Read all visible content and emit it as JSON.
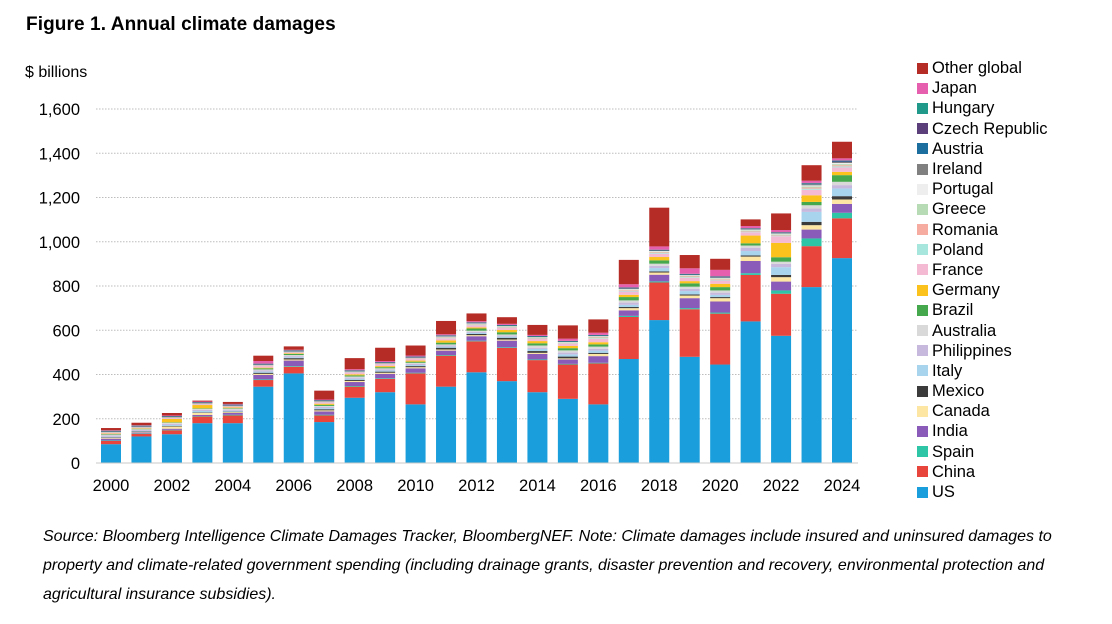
{
  "figure": {
    "title": "Figure 1. Annual climate damages",
    "unit_label": "$ billions",
    "source_note": "Source: Bloomberg Intelligence Climate Damages Tracker, BloombergNEF. Note: Climate damages include insured and uninsured damages to property and climate-related government spending (including drainage grants, disaster prevention and recovery, environmental protection and agricultural insurance subsidies)."
  },
  "chart_data": {
    "type": "bar",
    "stacked": true,
    "title": "Annual climate damages",
    "xlabel": "",
    "ylabel": "$ billions",
    "ylim": [
      0,
      1600
    ],
    "yticks": [
      0,
      200,
      400,
      600,
      800,
      1000,
      1200,
      1400,
      1600
    ],
    "ytick_labels": [
      "0",
      "200",
      "400",
      "600",
      "800",
      "1,000",
      "1,200",
      "1,400",
      "1,600"
    ],
    "grid": true,
    "legend_position": "right",
    "categories": [
      "2000",
      "2001",
      "2002",
      "2003",
      "2004",
      "2005",
      "2006",
      "2007",
      "2008",
      "2009",
      "2010",
      "2011",
      "2012",
      "2013",
      "2014",
      "2015",
      "2016",
      "2017",
      "2018",
      "2019",
      "2020",
      "2021",
      "2022",
      "2023",
      "2024"
    ],
    "xtick_labels": [
      "2000",
      "2002",
      "2004",
      "2006",
      "2008",
      "2010",
      "2012",
      "2014",
      "2016",
      "2018",
      "2020",
      "2022",
      "2024"
    ],
    "series": [
      {
        "name": "US",
        "color": "#1a9fdc",
        "values": [
          85,
          120,
          130,
          180,
          180,
          345,
          405,
          185,
          295,
          320,
          265,
          345,
          410,
          370,
          320,
          290,
          265,
          470,
          646,
          480,
          445,
          640,
          575,
          795,
          926
        ]
      },
      {
        "name": "China",
        "color": "#e8453c",
        "values": [
          15,
          12,
          18,
          30,
          35,
          30,
          30,
          30,
          50,
          60,
          140,
          140,
          140,
          150,
          145,
          155,
          185,
          190,
          170,
          215,
          230,
          210,
          190,
          185,
          180
        ]
      },
      {
        "name": "Spain",
        "color": "#2ec4a6",
        "values": [
          2,
          2,
          2,
          2,
          3,
          3,
          3,
          3,
          3,
          3,
          3,
          3,
          3,
          3,
          3,
          3,
          3,
          5,
          5,
          5,
          5,
          8,
          15,
          35,
          25
        ]
      },
      {
        "name": "India",
        "color": "#8a5bb8",
        "values": [
          8,
          4,
          5,
          5,
          8,
          20,
          25,
          15,
          18,
          20,
          20,
          20,
          20,
          30,
          25,
          20,
          30,
          25,
          30,
          45,
          50,
          55,
          40,
          40,
          40
        ]
      },
      {
        "name": "Canada",
        "color": "#fde5a4",
        "values": [
          4,
          3,
          10,
          10,
          4,
          5,
          5,
          5,
          5,
          5,
          5,
          5,
          5,
          5,
          5,
          5,
          10,
          10,
          10,
          12,
          15,
          20,
          20,
          20,
          20
        ]
      },
      {
        "name": "Mexico",
        "color": "#3b3b3b",
        "values": [
          2,
          2,
          2,
          2,
          2,
          5,
          6,
          5,
          5,
          5,
          5,
          8,
          5,
          8,
          8,
          8,
          5,
          5,
          5,
          5,
          5,
          5,
          10,
          15,
          15
        ]
      },
      {
        "name": "Italy",
        "color": "#a8d4ee",
        "values": [
          3,
          2,
          5,
          6,
          4,
          5,
          4,
          5,
          5,
          5,
          5,
          5,
          5,
          5,
          10,
          10,
          10,
          10,
          15,
          15,
          10,
          20,
          35,
          45,
          35
        ]
      },
      {
        "name": "Philippines",
        "color": "#c7b8de",
        "values": [
          5,
          4,
          5,
          5,
          5,
          5,
          5,
          5,
          5,
          5,
          5,
          5,
          5,
          5,
          5,
          8,
          8,
          10,
          10,
          10,
          10,
          15,
          15,
          15,
          15
        ]
      },
      {
        "name": "Australia",
        "color": "#d9d9d9",
        "values": [
          5,
          4,
          5,
          5,
          5,
          5,
          5,
          5,
          5,
          5,
          5,
          5,
          5,
          5,
          10,
          10,
          10,
          10,
          10,
          10,
          10,
          10,
          10,
          15,
          15
        ]
      },
      {
        "name": "Brazil",
        "color": "#45a84c",
        "values": [
          2,
          2,
          2,
          2,
          2,
          5,
          5,
          5,
          5,
          5,
          5,
          8,
          10,
          10,
          10,
          10,
          10,
          15,
          15,
          15,
          15,
          10,
          20,
          15,
          30
        ]
      },
      {
        "name": "Germany",
        "color": "#fbc21d",
        "values": [
          2,
          2,
          15,
          15,
          3,
          3,
          3,
          5,
          5,
          5,
          5,
          10,
          5,
          10,
          10,
          10,
          10,
          10,
          15,
          10,
          15,
          35,
          65,
          30,
          15
        ]
      },
      {
        "name": "France",
        "color": "#f4b9d3",
        "values": [
          5,
          4,
          5,
          5,
          5,
          10,
          5,
          8,
          10,
          10,
          10,
          10,
          10,
          10,
          10,
          10,
          15,
          15,
          15,
          15,
          15,
          15,
          30,
          25,
          20
        ]
      },
      {
        "name": "Poland",
        "color": "#a7e6dd",
        "values": [
          1,
          1,
          1,
          1,
          1,
          1,
          1,
          1,
          1,
          1,
          1,
          2,
          2,
          2,
          2,
          2,
          3,
          3,
          3,
          3,
          3,
          3,
          3,
          5,
          5
        ]
      },
      {
        "name": "Romania",
        "color": "#f7aca2",
        "values": [
          1,
          1,
          1,
          1,
          1,
          1,
          1,
          1,
          1,
          1,
          1,
          2,
          2,
          2,
          2,
          2,
          3,
          3,
          3,
          3,
          3,
          3,
          3,
          5,
          5
        ]
      },
      {
        "name": "Greece",
        "color": "#b7dcb5",
        "values": [
          1,
          1,
          1,
          1,
          1,
          1,
          1,
          1,
          1,
          1,
          1,
          2,
          2,
          2,
          2,
          2,
          3,
          3,
          3,
          3,
          3,
          3,
          3,
          5,
          5
        ]
      },
      {
        "name": "Portugal",
        "color": "#eeeeee",
        "values": [
          1,
          1,
          1,
          1,
          1,
          1,
          1,
          1,
          1,
          1,
          1,
          2,
          2,
          2,
          2,
          2,
          3,
          3,
          3,
          3,
          3,
          3,
          3,
          5,
          5
        ]
      },
      {
        "name": "Ireland",
        "color": "#808080",
        "values": [
          1,
          1,
          1,
          1,
          1,
          1,
          1,
          1,
          1,
          1,
          1,
          2,
          2,
          2,
          2,
          2,
          3,
          3,
          3,
          3,
          3,
          3,
          3,
          5,
          5
        ]
      },
      {
        "name": "Austria",
        "color": "#1c6e9e",
        "values": [
          1,
          1,
          1,
          1,
          1,
          1,
          1,
          1,
          1,
          1,
          1,
          1,
          1,
          1,
          1,
          1,
          1,
          1,
          1,
          1,
          1,
          1,
          1,
          2,
          2
        ]
      },
      {
        "name": "Czech Republic",
        "color": "#5a3f7a",
        "values": [
          1,
          1,
          1,
          1,
          1,
          1,
          1,
          1,
          1,
          1,
          1,
          1,
          1,
          1,
          1,
          1,
          1,
          1,
          1,
          1,
          1,
          1,
          1,
          2,
          2
        ]
      },
      {
        "name": "Hungary",
        "color": "#21998a",
        "values": [
          1,
          1,
          1,
          1,
          1,
          1,
          1,
          1,
          1,
          1,
          1,
          1,
          1,
          1,
          1,
          1,
          1,
          1,
          1,
          1,
          1,
          1,
          1,
          2,
          2
        ]
      },
      {
        "name": "Japan",
        "color": "#e65fae",
        "values": [
          2,
          2,
          3,
          3,
          3,
          12,
          3,
          3,
          5,
          5,
          5,
          5,
          5,
          5,
          5,
          10,
          10,
          15,
          15,
          25,
          30,
          10,
          10,
          10,
          10
        ]
      },
      {
        "name": "Other global",
        "color": "#b52b25",
        "values": [
          10,
          11,
          11,
          4,
          9,
          24,
          15,
          40,
          50,
          60,
          45,
          60,
          35,
          30,
          45,
          60,
          60,
          110,
          175,
          60,
          50,
          30,
          75,
          70,
          75
        ]
      }
    ]
  }
}
